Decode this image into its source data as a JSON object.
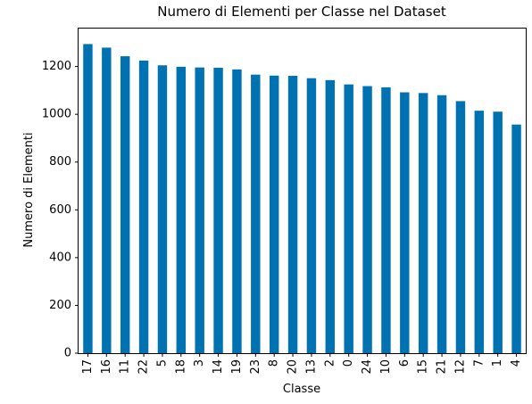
{
  "chart_data": {
    "type": "bar",
    "title": "Numero di Elementi per Classe nel Dataset",
    "xlabel": "Classe",
    "ylabel": "Numero di Elementi",
    "categories": [
      "17",
      "16",
      "11",
      "22",
      "5",
      "18",
      "3",
      "14",
      "19",
      "23",
      "8",
      "20",
      "13",
      "2",
      "0",
      "24",
      "10",
      "6",
      "15",
      "21",
      "12",
      "7",
      "1",
      "4"
    ],
    "values": [
      1294,
      1279,
      1243,
      1225,
      1205,
      1199,
      1196,
      1195,
      1188,
      1166,
      1162,
      1161,
      1151,
      1143,
      1125,
      1118,
      1113,
      1092,
      1089,
      1080,
      1055,
      1015,
      1011,
      957
    ],
    "ylim": [
      0,
      1359
    ],
    "yticks": [
      0,
      200,
      400,
      600,
      800,
      1000,
      1200
    ],
    "grid": false,
    "legend": "none",
    "bar_color": "#0072b2"
  }
}
